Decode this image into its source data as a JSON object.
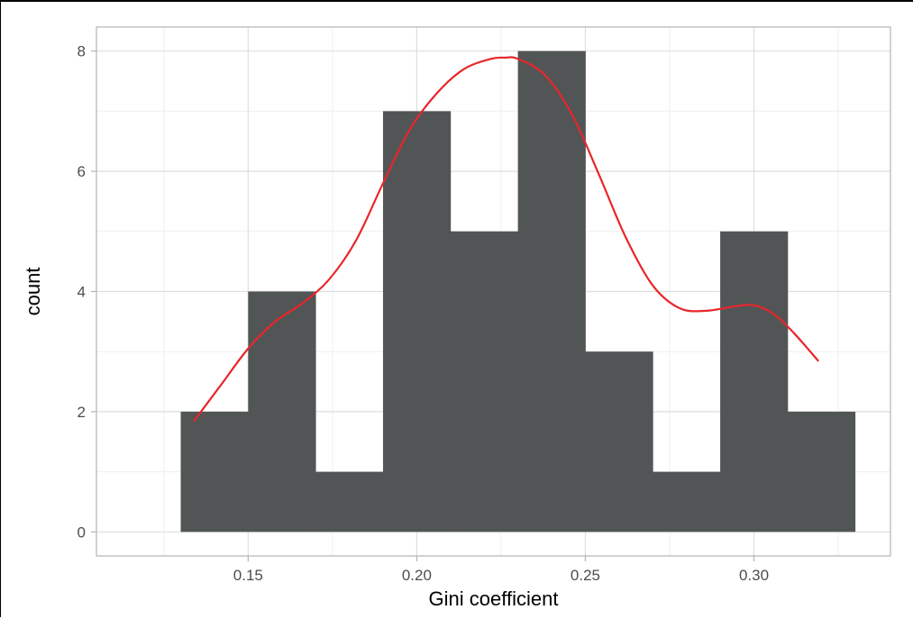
{
  "chart_data": {
    "type": "bar",
    "subtype": "histogram",
    "xlabel": "Gini coefficient",
    "ylabel": "count",
    "xlim": [
      0.105,
      0.3405
    ],
    "ylim": [
      -0.4,
      8.4
    ],
    "x_ticks": [
      0.15,
      0.2,
      0.25,
      0.3
    ],
    "x_tick_labels": [
      "0.15",
      "0.20",
      "0.25",
      "0.30"
    ],
    "y_ticks": [
      0,
      2,
      4,
      6,
      8
    ],
    "y_tick_labels": [
      "0",
      "2",
      "4",
      "6",
      "8"
    ],
    "grid": true,
    "bin_width": 0.02,
    "bins": [
      {
        "x0": 0.13,
        "x1": 0.15,
        "count": 2
      },
      {
        "x0": 0.15,
        "x1": 0.17,
        "count": 4
      },
      {
        "x0": 0.17,
        "x1": 0.19,
        "count": 1
      },
      {
        "x0": 0.19,
        "x1": 0.21,
        "count": 7
      },
      {
        "x0": 0.21,
        "x1": 0.23,
        "count": 5
      },
      {
        "x0": 0.23,
        "x1": 0.25,
        "count": 8
      },
      {
        "x0": 0.25,
        "x1": 0.27,
        "count": 3
      },
      {
        "x0": 0.27,
        "x1": 0.29,
        "count": 1
      },
      {
        "x0": 0.29,
        "x1": 0.31,
        "count": 5
      },
      {
        "x0": 0.31,
        "x1": 0.33,
        "count": 2
      }
    ],
    "density_curve": {
      "x": [
        0.134,
        0.142,
        0.15,
        0.158,
        0.166,
        0.174,
        0.182,
        0.19,
        0.198,
        0.206,
        0.214,
        0.222,
        0.226,
        0.23,
        0.238,
        0.246,
        0.254,
        0.262,
        0.27,
        0.278,
        0.286,
        0.294,
        0.3,
        0.306,
        0.312,
        0.319
      ],
      "y": [
        1.85,
        2.45,
        3.05,
        3.5,
        3.8,
        4.2,
        4.85,
        5.8,
        6.7,
        7.3,
        7.7,
        7.87,
        7.89,
        7.87,
        7.6,
        6.95,
        5.95,
        4.9,
        4.1,
        3.72,
        3.68,
        3.75,
        3.77,
        3.62,
        3.3,
        2.85
      ]
    },
    "colors": {
      "bar_fill": "#525556",
      "curve": "#e8262b",
      "panel_border": "#b3b3b3",
      "grid_major": "#dedede",
      "grid_minor": "#efefef",
      "tick_label": "#4d4d4d"
    }
  }
}
